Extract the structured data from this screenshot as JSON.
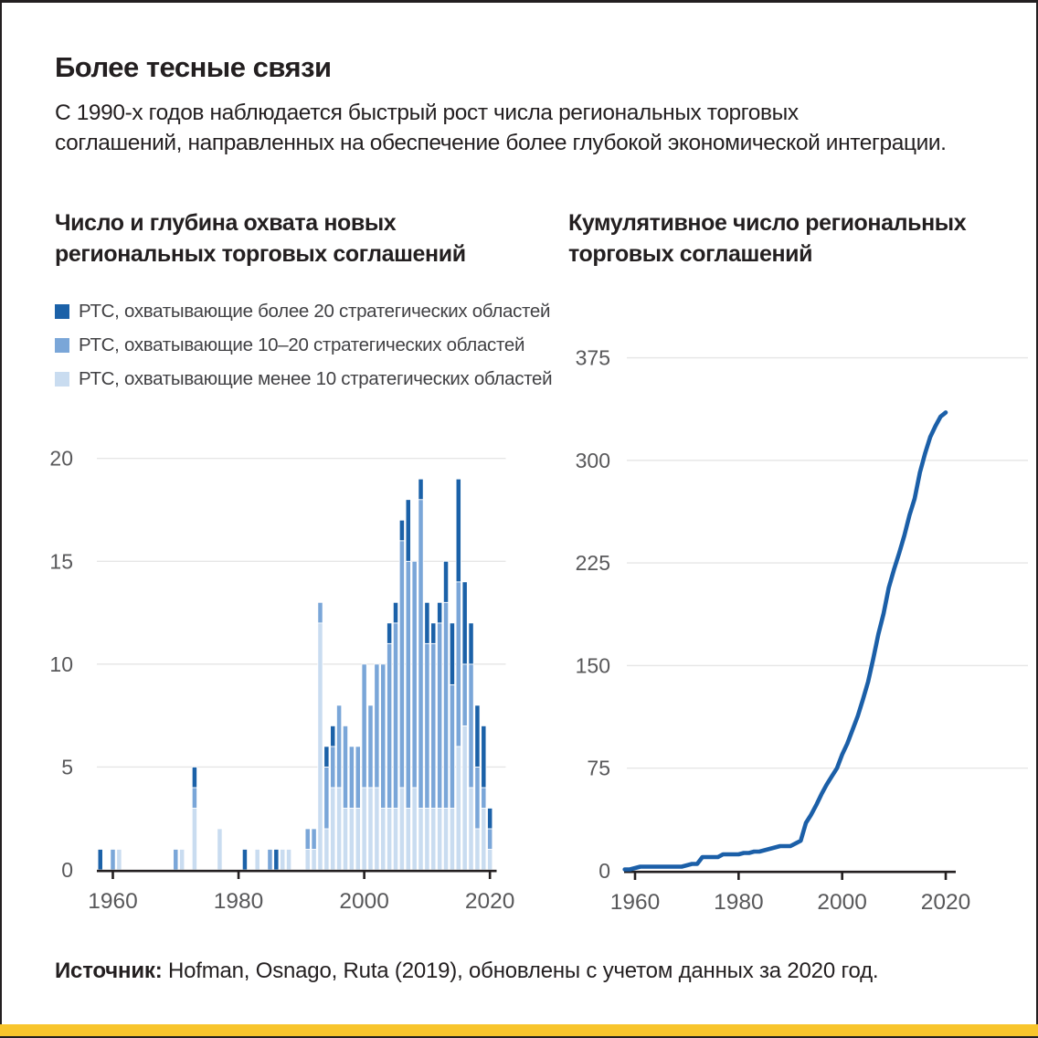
{
  "header": {
    "title": "Более тесные связи",
    "subtitle_lines": [
      "С 1990-х годов наблюдается быстрый рост числа региональных торговых",
      "соглашений, направленных на обеспечение более глубокой экономической интеграции."
    ]
  },
  "left_chart": {
    "title_lines": [
      "Число и глубина охвата новых",
      "региональных торговых соглашений"
    ]
  },
  "right_chart": {
    "title_lines": [
      "Кумулятивное число региональных",
      "торговых соглашений"
    ]
  },
  "footer": {
    "source_label": "Источник:",
    "source_text": " Hofman, Osnago, Ruta (2019), обновлены с учетом данных за 2020 год."
  },
  "colors": {
    "dark_blue": "#1b61a8",
    "medium_blue": "#7aa6d8",
    "light_blue": "#c9dcf0",
    "line_blue": "#1b5fa8",
    "grid_gray": "#e6e6e6",
    "axis_black": "#231f20",
    "tick_label_gray": "#58585a",
    "yellow_bar": "#f8c52c"
  },
  "chart_data": [
    {
      "type": "bar",
      "stacked": true,
      "title": "Число и глубина охвата новых региональных торговых соглашений",
      "years": [
        1958,
        1959,
        1960,
        1961,
        1962,
        1963,
        1964,
        1965,
        1966,
        1967,
        1968,
        1969,
        1970,
        1971,
        1972,
        1973,
        1974,
        1975,
        1976,
        1977,
        1978,
        1979,
        1980,
        1981,
        1982,
        1983,
        1984,
        1985,
        1986,
        1987,
        1988,
        1989,
        1990,
        1991,
        1992,
        1993,
        1994,
        1995,
        1996,
        1997,
        1998,
        1999,
        2000,
        2001,
        2002,
        2003,
        2004,
        2005,
        2006,
        2007,
        2008,
        2009,
        2010,
        2011,
        2012,
        2013,
        2014,
        2015,
        2016,
        2017,
        2018,
        2019,
        2020
      ],
      "series": [
        {
          "name": "РТС, охватывающие более 20 стратегических областей",
          "color": "#1b61a8",
          "values": [
            1,
            0,
            0,
            0,
            0,
            0,
            0,
            0,
            0,
            0,
            0,
            0,
            0,
            0,
            0,
            1,
            0,
            0,
            0,
            0,
            0,
            0,
            0,
            1,
            0,
            0,
            0,
            0,
            1,
            0,
            0,
            0,
            0,
            0,
            0,
            0,
            1,
            1,
            0,
            0,
            0,
            0,
            0,
            0,
            0,
            0,
            1,
            1,
            1,
            3,
            0,
            1,
            2,
            1,
            1,
            2,
            3,
            5,
            4,
            2,
            3,
            3,
            1
          ]
        },
        {
          "name": "РТС, охватывающие 10–20 стратегических областей",
          "color": "#7aa6d8",
          "values": [
            0,
            0,
            1,
            0,
            0,
            0,
            0,
            0,
            0,
            0,
            0,
            0,
            1,
            0,
            0,
            1,
            0,
            0,
            0,
            0,
            0,
            0,
            0,
            0,
            0,
            0,
            0,
            1,
            0,
            0,
            0,
            0,
            0,
            1,
            1,
            1,
            3,
            2,
            4,
            4,
            3,
            3,
            6,
            4,
            6,
            7,
            8,
            9,
            12,
            12,
            11,
            15,
            8,
            8,
            9,
            10,
            6,
            8,
            3,
            6,
            3,
            1,
            1
          ]
        },
        {
          "name": "РТС, охватывающие менее 10 стратегических областей",
          "color": "#c9dcf0",
          "values": [
            0,
            0,
            0,
            1,
            0,
            0,
            0,
            0,
            0,
            0,
            0,
            0,
            0,
            1,
            0,
            3,
            0,
            0,
            0,
            2,
            0,
            0,
            0,
            0,
            0,
            1,
            0,
            0,
            0,
            1,
            1,
            0,
            0,
            1,
            1,
            12,
            2,
            4,
            4,
            3,
            3,
            3,
            4,
            4,
            4,
            3,
            3,
            3,
            4,
            3,
            4,
            3,
            3,
            3,
            3,
            3,
            3,
            6,
            7,
            4,
            2,
            3,
            1
          ]
        }
      ],
      "x_ticks": [
        1960,
        1980,
        2000,
        2020
      ],
      "y_ticks": [
        0,
        5,
        10,
        15,
        20
      ],
      "ylim": [
        0,
        20
      ],
      "grid": true,
      "legend_position": "top-left"
    },
    {
      "type": "line",
      "title": "Кумулятивное число региональных торговых соглашений",
      "years": [
        1958,
        1959,
        1960,
        1961,
        1962,
        1963,
        1964,
        1965,
        1966,
        1967,
        1968,
        1969,
        1970,
        1971,
        1972,
        1973,
        1974,
        1975,
        1976,
        1977,
        1978,
        1979,
        1980,
        1981,
        1982,
        1983,
        1984,
        1985,
        1986,
        1987,
        1988,
        1989,
        1990,
        1991,
        1992,
        1993,
        1994,
        1995,
        1996,
        1997,
        1998,
        1999,
        2000,
        2001,
        2002,
        2003,
        2004,
        2005,
        2006,
        2007,
        2008,
        2009,
        2010,
        2011,
        2012,
        2013,
        2014,
        2015,
        2016,
        2017,
        2018,
        2019,
        2020
      ],
      "values": [
        1,
        1,
        2,
        3,
        3,
        3,
        3,
        3,
        3,
        3,
        3,
        3,
        4,
        5,
        5,
        10,
        10,
        10,
        10,
        12,
        12,
        12,
        12,
        13,
        13,
        14,
        14,
        15,
        16,
        17,
        18,
        18,
        18,
        20,
        22,
        35,
        41,
        48,
        56,
        63,
        69,
        75,
        85,
        93,
        103,
        113,
        125,
        138,
        155,
        173,
        188,
        207,
        220,
        232,
        245,
        260,
        272,
        291,
        305,
        317,
        325,
        332,
        335
      ],
      "color": "#1b5fa8",
      "x_ticks": [
        1960,
        1980,
        2000,
        2020
      ],
      "y_ticks": [
        0,
        75,
        150,
        225,
        300,
        375
      ],
      "ylim": [
        0,
        375
      ],
      "grid": true
    }
  ]
}
